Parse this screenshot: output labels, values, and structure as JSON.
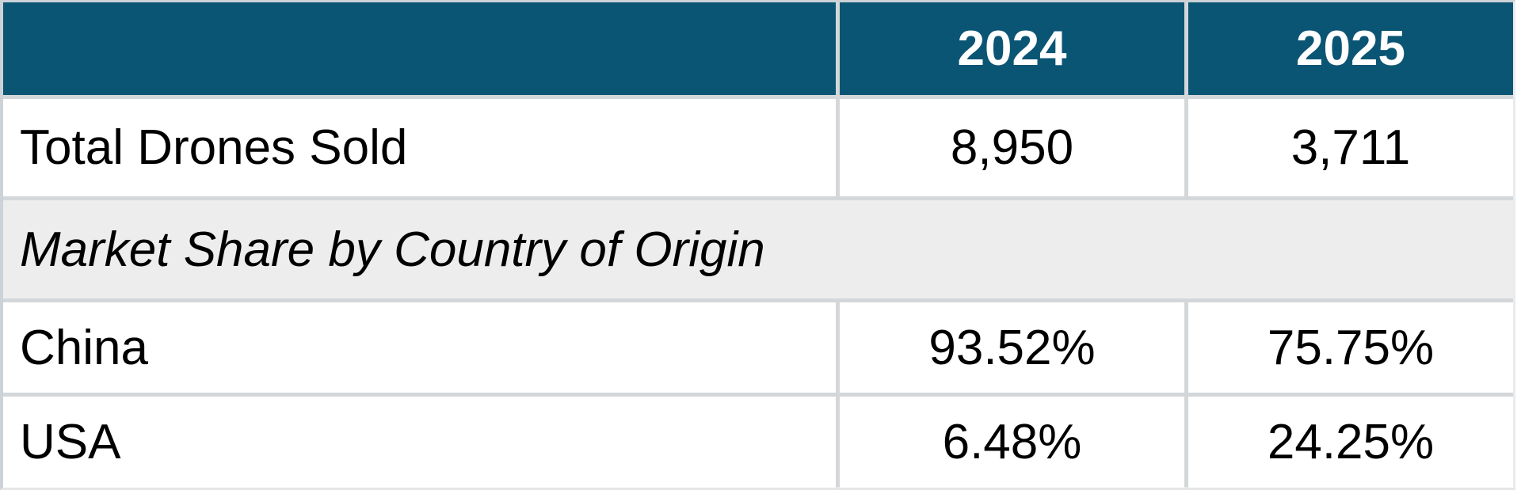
{
  "colors": {
    "header_bg": "#0b5574",
    "header_text": "#ffffff",
    "body_text": "#000000",
    "section_row_bg": "#ededed",
    "grid_border": "#d4d7d9"
  },
  "table": {
    "header": {
      "blank": "",
      "col_2024": "2024",
      "col_2025": "2025"
    },
    "rows": [
      {
        "label": "Total Drones Sold",
        "y2024": "8,950",
        "y2025": "3,711"
      },
      {
        "label": "Market Share by Country of Origin"
      },
      {
        "label": "China",
        "y2024": "93.52%",
        "y2025": "75.75%"
      },
      {
        "label": "USA",
        "y2024": "6.48%",
        "y2025": "24.25%"
      }
    ]
  },
  "chart_data": {
    "type": "table",
    "columns": [
      "",
      "2024",
      "2025"
    ],
    "rows": [
      [
        "Total Drones Sold",
        "8,950",
        "3,711"
      ],
      [
        "Market Share by Country of Origin",
        "",
        ""
      ],
      [
        "China",
        "93.52%",
        "75.75%"
      ],
      [
        "USA",
        "6.48%",
        "24.25%"
      ]
    ],
    "values": {
      "total_drones_sold": {
        "2024": 8950,
        "2025": 3711
      },
      "market_share_pct_by_country_of_origin": {
        "China": {
          "2024": 93.52,
          "2025": 75.75
        },
        "USA": {
          "2024": 6.48,
          "2025": 24.25
        }
      }
    }
  }
}
